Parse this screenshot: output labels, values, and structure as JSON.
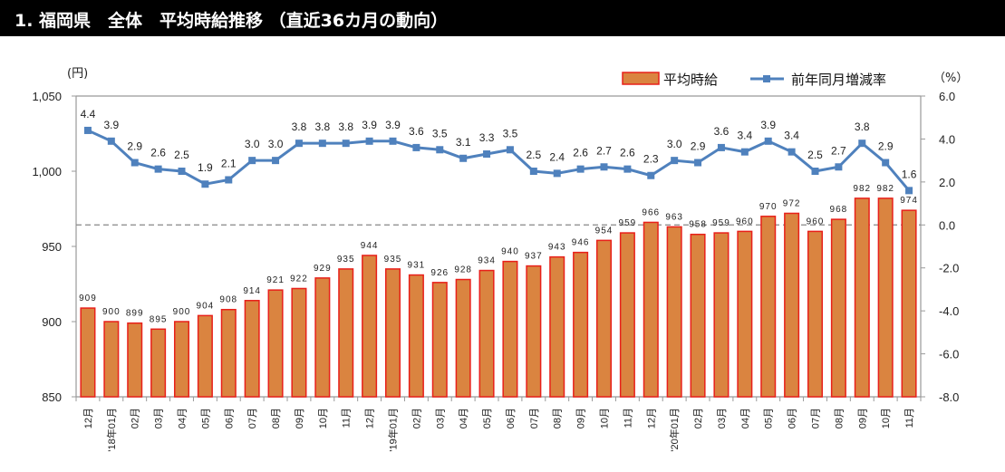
{
  "header": {
    "title": "1. 福岡県　全体　平均時給推移 （直近36カ月の動向）"
  },
  "chart_data": {
    "type": "bar+line",
    "title": "1. 福岡県　全体　平均時給推移 （直近36カ月の動向）",
    "categories": [
      "12月",
      "'18年01月",
      "02月",
      "03月",
      "04月",
      "05月",
      "06月",
      "07月",
      "08月",
      "09月",
      "10月",
      "11月",
      "12月",
      "'19年01月",
      "02月",
      "03月",
      "04月",
      "05月",
      "06月",
      "07月",
      "08月",
      "09月",
      "10月",
      "11月",
      "12月",
      "'20年01月",
      "02月",
      "03月",
      "04月",
      "05月",
      "06月",
      "07月",
      "08月",
      "09月",
      "10月",
      "11月"
    ],
    "series": [
      {
        "name": "平均時給",
        "type": "bar",
        "axis": "left",
        "color": "#DA8440",
        "border_color": "#E8201A",
        "values": [
          909,
          900,
          899,
          895,
          900,
          904,
          908,
          914,
          921,
          922,
          929,
          935,
          944,
          935,
          931,
          926,
          928,
          934,
          940,
          937,
          943,
          946,
          954,
          959,
          966,
          963,
          958,
          959,
          960,
          970,
          972,
          960,
          968,
          982,
          982,
          974
        ]
      },
      {
        "name": "前年同月増減率",
        "type": "line",
        "axis": "right",
        "color": "#4F81BD",
        "values": [
          4.4,
          3.9,
          2.9,
          2.6,
          2.5,
          1.9,
          2.1,
          3.0,
          3.0,
          3.8,
          3.8,
          3.8,
          3.9,
          3.9,
          3.6,
          3.5,
          3.1,
          3.3,
          3.5,
          2.5,
          2.4,
          2.6,
          2.7,
          2.6,
          2.3,
          3.0,
          2.9,
          3.6,
          3.4,
          3.9,
          3.4,
          2.5,
          2.7,
          3.8,
          2.9,
          1.6
        ]
      }
    ],
    "left_axis": {
      "unit_label": "(円)",
      "range": [
        850,
        1050
      ],
      "ticks": [
        "850",
        "900",
        "950",
        "1,000",
        "1,050"
      ]
    },
    "right_axis": {
      "unit_label": "（%）",
      "range": [
        -8.0,
        6.0
      ],
      "ticks": [
        "-8.0",
        "-6.0",
        "-4.0",
        "-2.0",
        "0.0",
        "2.0",
        "4.0",
        "6.0"
      ]
    },
    "reference_line": {
      "axis": "right",
      "value": 0.0,
      "style": "dashed"
    },
    "legend": {
      "position": "top-right",
      "entries": [
        "平均時給",
        "前年同月増減率"
      ]
    },
    "grid": false
  }
}
